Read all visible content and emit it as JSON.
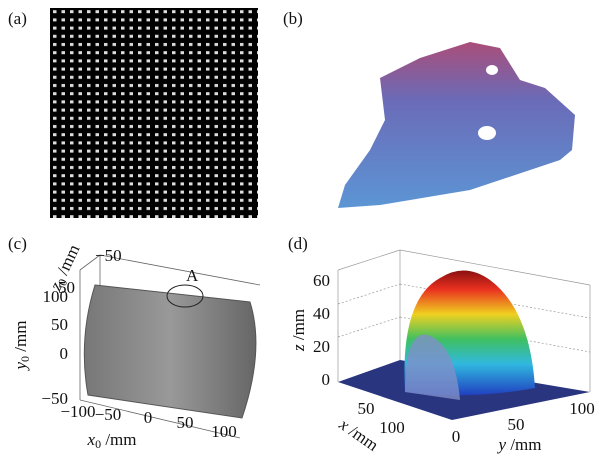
{
  "panels": [
    {
      "label": "(a)"
    },
    {
      "label": "(b)"
    },
    {
      "label": "(c)",
      "annotation": "A",
      "z_axis": {
        "symbol": "z",
        "subscript": "0",
        "unit": " /mm",
        "ticks": [
          "−50",
          "50"
        ]
      },
      "y_axis": {
        "symbol": "y",
        "subscript": "0",
        "unit": " /mm",
        "ticks": [
          "100",
          "50",
          "0",
          "−50"
        ]
      },
      "x_axis": {
        "symbol": "x",
        "subscript": "0",
        "unit": " /mm",
        "ticks": [
          "−100",
          "−50",
          "0",
          "50",
          "100"
        ]
      }
    },
    {
      "label": "(d)",
      "z_axis": {
        "symbol": "z",
        "unit": " /mm",
        "ticks": [
          "60",
          "40",
          "20",
          "0"
        ]
      },
      "x_axis": {
        "symbol": "x",
        "unit": " /mm",
        "ticks": [
          "50",
          "100"
        ]
      },
      "y_axis": {
        "symbol": "y",
        "unit": " /mm",
        "ticks": [
          "0",
          "50",
          "100"
        ]
      }
    }
  ]
}
